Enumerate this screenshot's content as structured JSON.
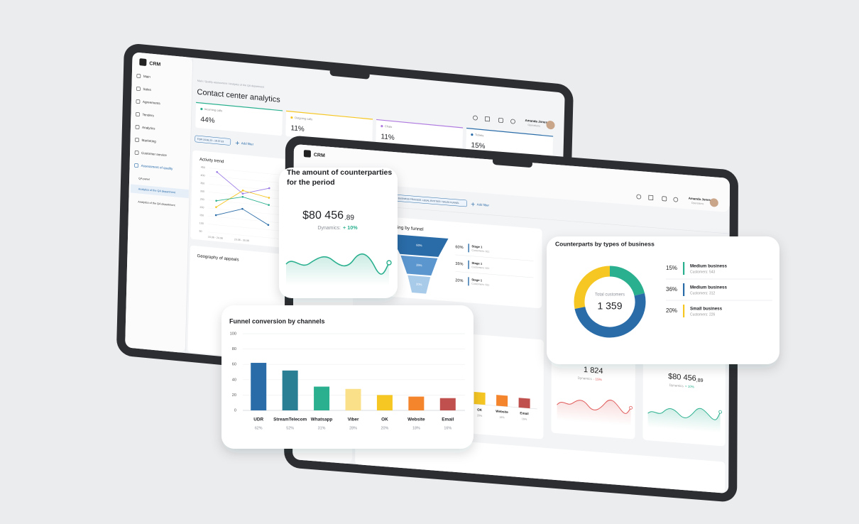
{
  "back_tablet": {
    "logo": "CRM",
    "menu": [
      "Main",
      "Sales",
      "Agreements",
      "Tenders",
      "Analytics",
      "Marketing",
      "Customer service",
      "Assessment of quality",
      "QA panel",
      "Analytics of the QA department",
      "Analytics of the QA department"
    ],
    "breadcrumb": "Main / Quality assessment / Analytics of the QA department",
    "title": "Contact center analytics",
    "user_name": "Amanda Jones",
    "user_role": "Operations",
    "kpis": [
      {
        "label": "Incoming calls",
        "value": "44%",
        "color": "#2bb08f"
      },
      {
        "label": "Outgoing calls",
        "value": "11%",
        "color": "#f6c623"
      },
      {
        "label": "Chats",
        "value": "11%",
        "color": "#b07ce0"
      },
      {
        "label": "Tickets",
        "value": "15%",
        "color": "#2a6ca8"
      }
    ],
    "date_filter": "FOR 16.06.23 - 18.07.23",
    "add_filter": "Add filter",
    "activity_trend": {
      "title": "Activity trend",
      "categories": [
        "16.06 - 24.06",
        "23.06 - 30.06",
        null
      ],
      "ylim": [
        50,
        450
      ],
      "yticks": [
        50,
        100,
        150,
        200,
        250,
        300,
        350,
        400,
        450
      ],
      "series": [
        {
          "color": "#9b7be6",
          "values": [
            430,
            310,
            360
          ]
        },
        {
          "color": "#f6c623",
          "values": [
            210,
            330,
            300
          ]
        },
        {
          "color": "#2bb08f",
          "values": [
            250,
            290,
            255
          ]
        },
        {
          "color": "#2a6ca8",
          "values": [
            160,
            215,
            130
          ]
        }
      ]
    },
    "geography_title": "Geography of appeals"
  },
  "front_tablet": {
    "logo": "CRM",
    "user_name": "Amanda Jones",
    "user_role": "Operations",
    "filter_chip": "BUSINESS PROCESS: LEGAL ENTITIES / SALES FUNNEL",
    "add_filter": "Add filter",
    "funnel": {
      "title": "sifting by funnel",
      "stages": [
        {
          "percent": "60%",
          "name": "Stage 1",
          "customers": "Customers: 611"
        },
        {
          "percent": "35%",
          "name": "Stage 1",
          "customers": "Customers: 611"
        },
        {
          "percent": "20%",
          "name": "Stage 1",
          "customers": "Customers: 611"
        }
      ]
    },
    "channels": {
      "categories": [
        "OK",
        "Website",
        "Email"
      ],
      "values": [
        20,
        18,
        16
      ],
      "value_labels": [
        "20%",
        "18%",
        "16%"
      ],
      "colors": [
        "#f6c623",
        "#f5852d",
        "#c0504d"
      ],
      "ylim": [
        0,
        100
      ]
    },
    "stat_cards": [
      {
        "value": "1 824",
        "dynamics_label": "Dynamics",
        "dynamics": "- 15%"
      },
      {
        "value": "$80 456",
        "cents": ",89",
        "dynamics_label": "Dynamics",
        "dynamics": "+ 10%"
      }
    ]
  },
  "counterparties_card": {
    "title": "The amount of counterparties for the period",
    "amount": "$80 456",
    "cents": ".89",
    "dynamics_label": "Dynamics:",
    "dynamics": "+ 10%"
  },
  "business_types_card": {
    "title": "Counterparts by types of business",
    "center_label": "Total customers",
    "total": "1 359",
    "names": [
      "Medium business",
      "Medium business",
      "Small business"
    ],
    "values": [
      15,
      36,
      20
    ],
    "value_labels": [
      "15%",
      "36%",
      "20%"
    ],
    "customers": [
      "Customers: 543",
      "Customers: 312",
      "Customers: 226"
    ],
    "colors": [
      "#2bb08f",
      "#2a6ca8",
      "#f6c623"
    ]
  },
  "funnel_card": {
    "title": "Funnel conversion by channels",
    "categories": [
      "UDR",
      "StreamTelecom",
      "Whatsapp",
      "Viber",
      "OK",
      "Website",
      "Email"
    ],
    "values": [
      62,
      52,
      31,
      28,
      20,
      18,
      16
    ],
    "value_labels": [
      "62%",
      "52%",
      "31%",
      "28%",
      "20%",
      "18%",
      "16%"
    ],
    "colors": [
      "#2a6ca8",
      "#2a7f95",
      "#2bb08f",
      "#fbe08a",
      "#f6c623",
      "#f5852d",
      "#c0504d"
    ],
    "ylim": [
      0,
      100
    ],
    "yticks": [
      0,
      20,
      40,
      60,
      80,
      100
    ]
  }
}
